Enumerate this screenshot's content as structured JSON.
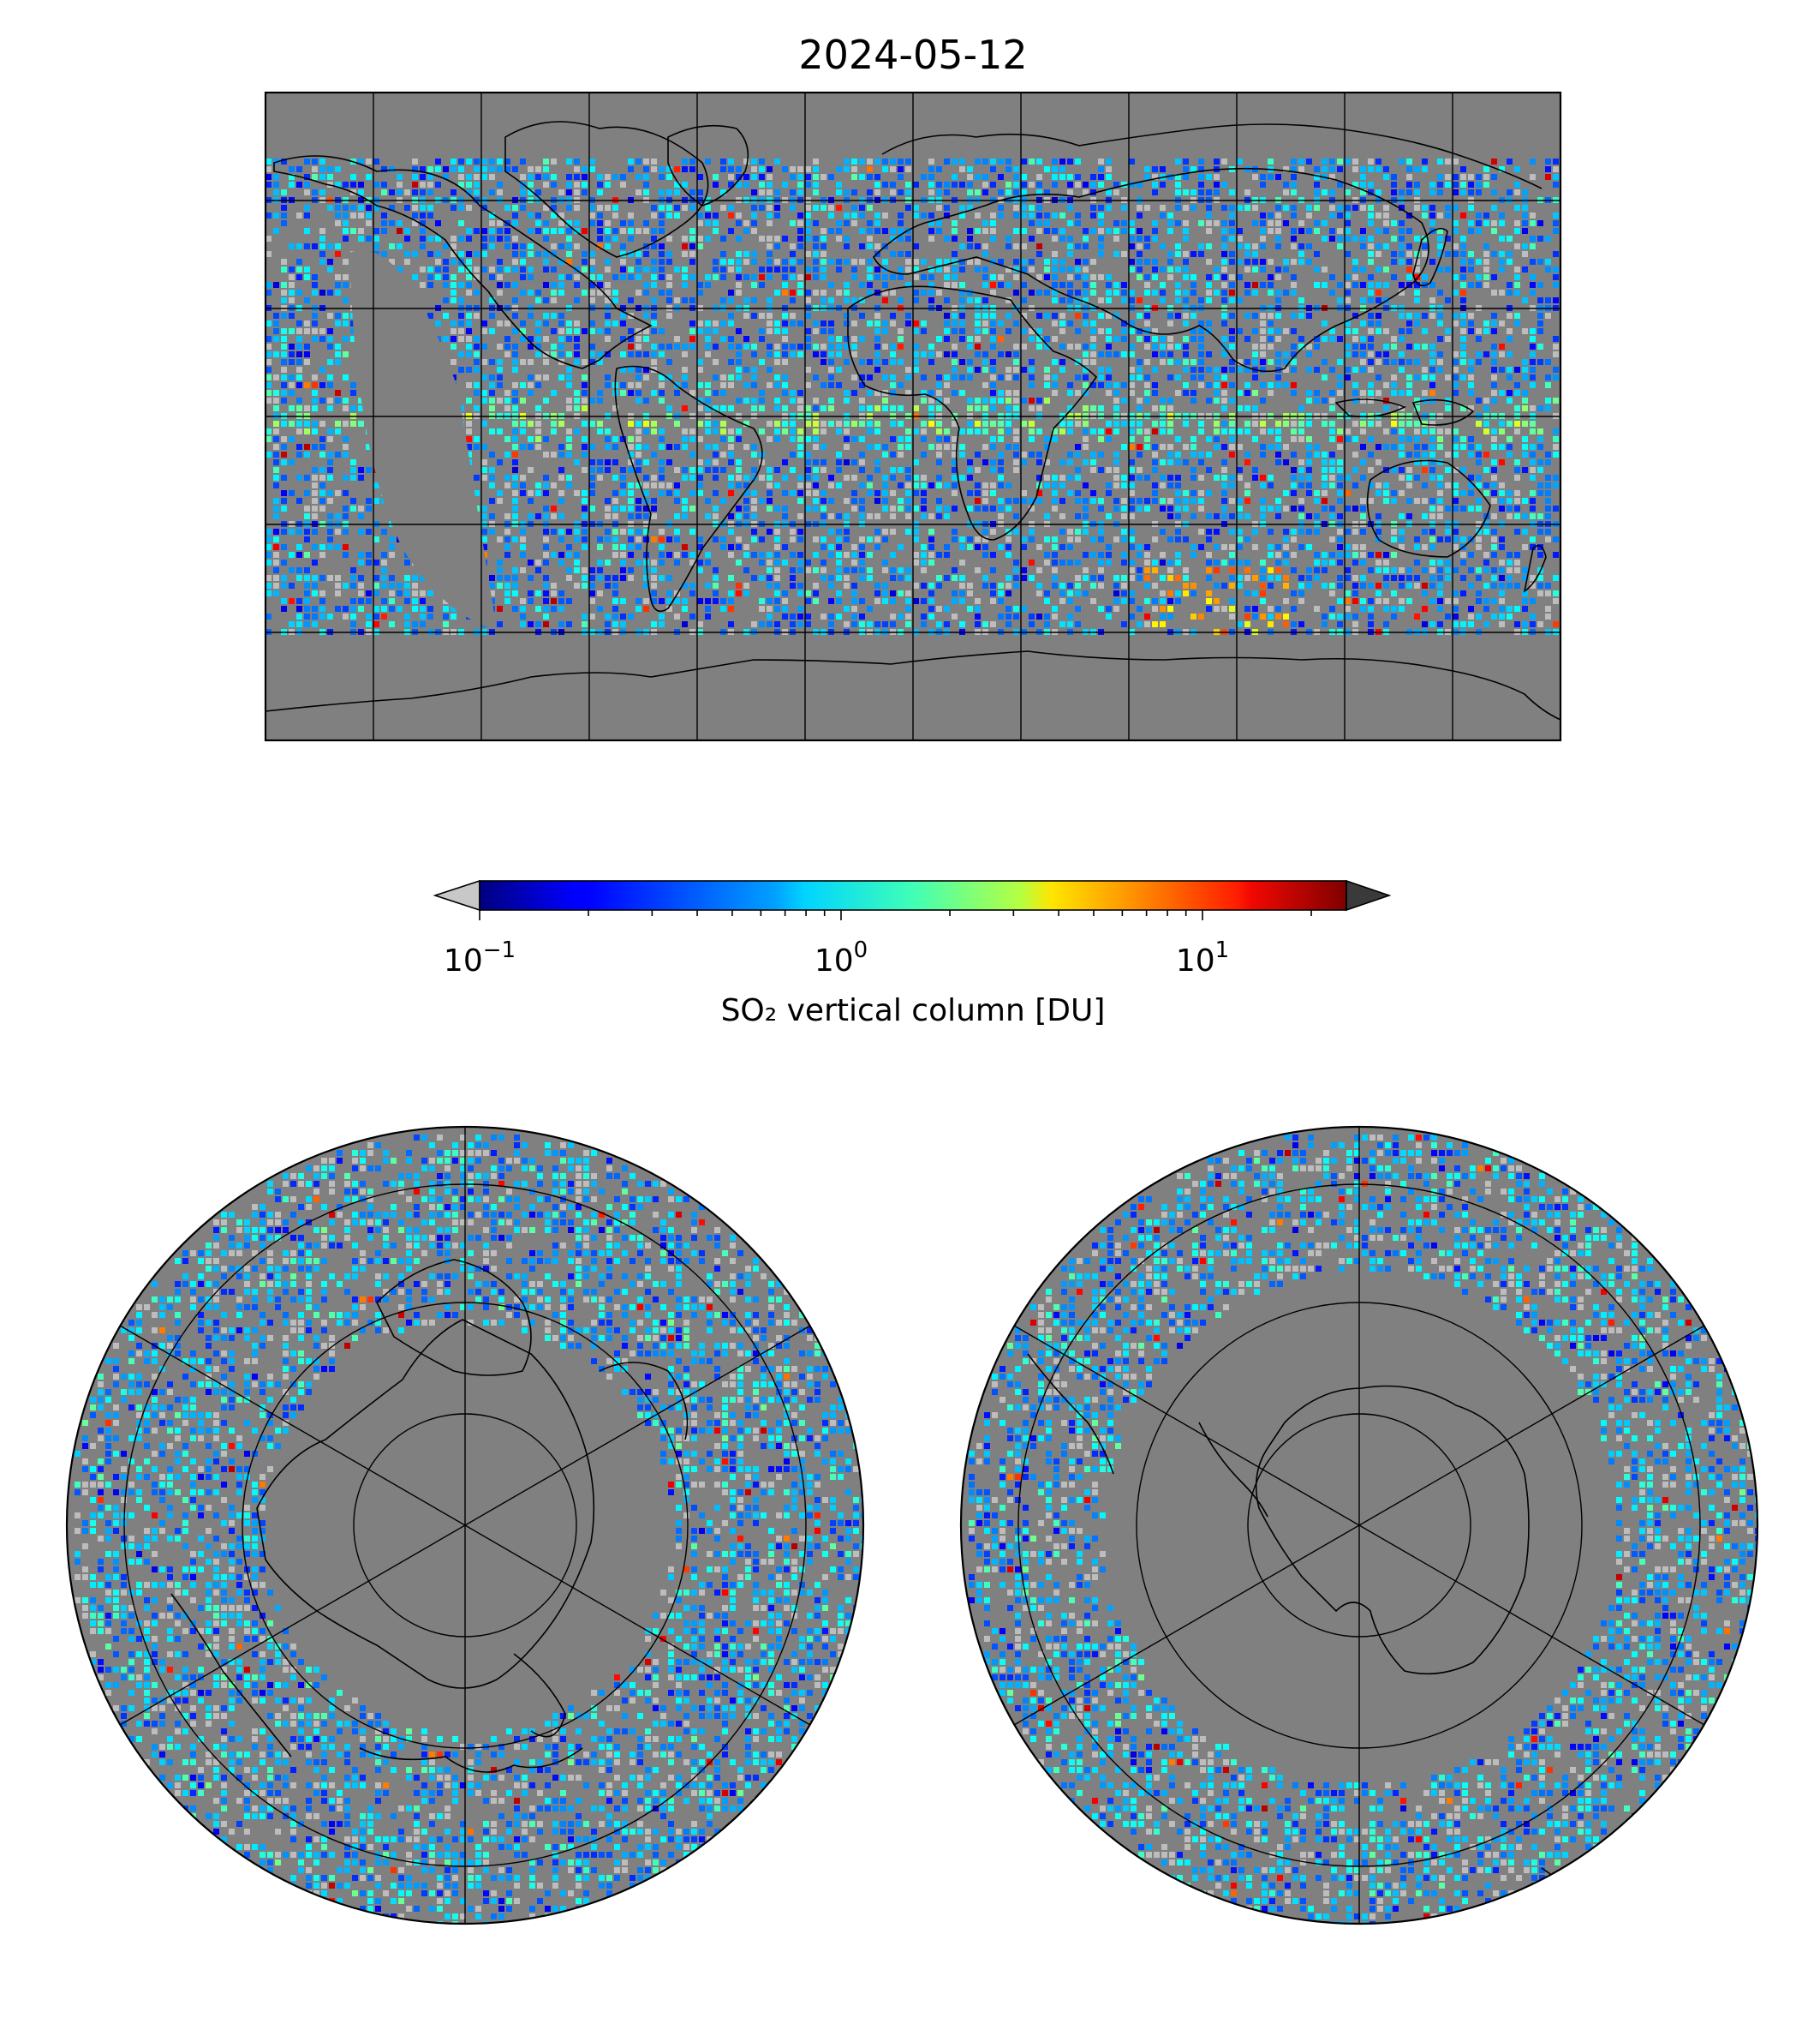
{
  "title": "2024-05-12",
  "colorbar": {
    "label": "SO₂ vertical column [DU]",
    "scale": "log",
    "range": [
      0.1,
      25
    ],
    "extend": "both",
    "colormap": "jet",
    "under_color": "#c8c8c8",
    "over_color": "#3a3a3a",
    "ticks": [
      {
        "base": "10",
        "exp": "−1",
        "value": 0.1
      },
      {
        "base": "10",
        "exp": "0",
        "value": 1
      },
      {
        "base": "10",
        "exp": "1",
        "value": 10
      }
    ]
  },
  "maps": {
    "global": {
      "projection": "plate-carree",
      "graticule_lon_step": 30,
      "graticule_lat_step": 30,
      "background": "#808080"
    },
    "north_polar": {
      "projection": "north-polar-stereographic",
      "background": "#808080"
    },
    "south_polar": {
      "projection": "south-polar-stereographic",
      "background": "#808080"
    }
  },
  "colors": {
    "land_nodata": "#808080",
    "coastline": "#000000",
    "low_value": "#c0c0c0"
  }
}
